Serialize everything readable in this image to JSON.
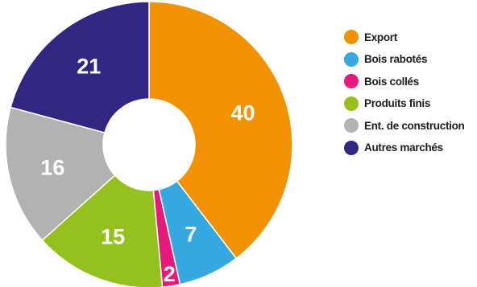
{
  "chart_data": {
    "type": "pie",
    "donut": true,
    "title": "",
    "legend_position": "right",
    "categories": [
      "Export",
      "Bois rabotés",
      "Bois collés",
      "Produits finis",
      "Ent. de construction",
      "Autres marchés"
    ],
    "values": [
      40,
      7,
      2,
      15,
      16,
      21
    ],
    "colors": [
      "#F39200",
      "#36A9E1",
      "#E6197D",
      "#95C11F",
      "#B2B2B2",
      "#312783"
    ]
  }
}
